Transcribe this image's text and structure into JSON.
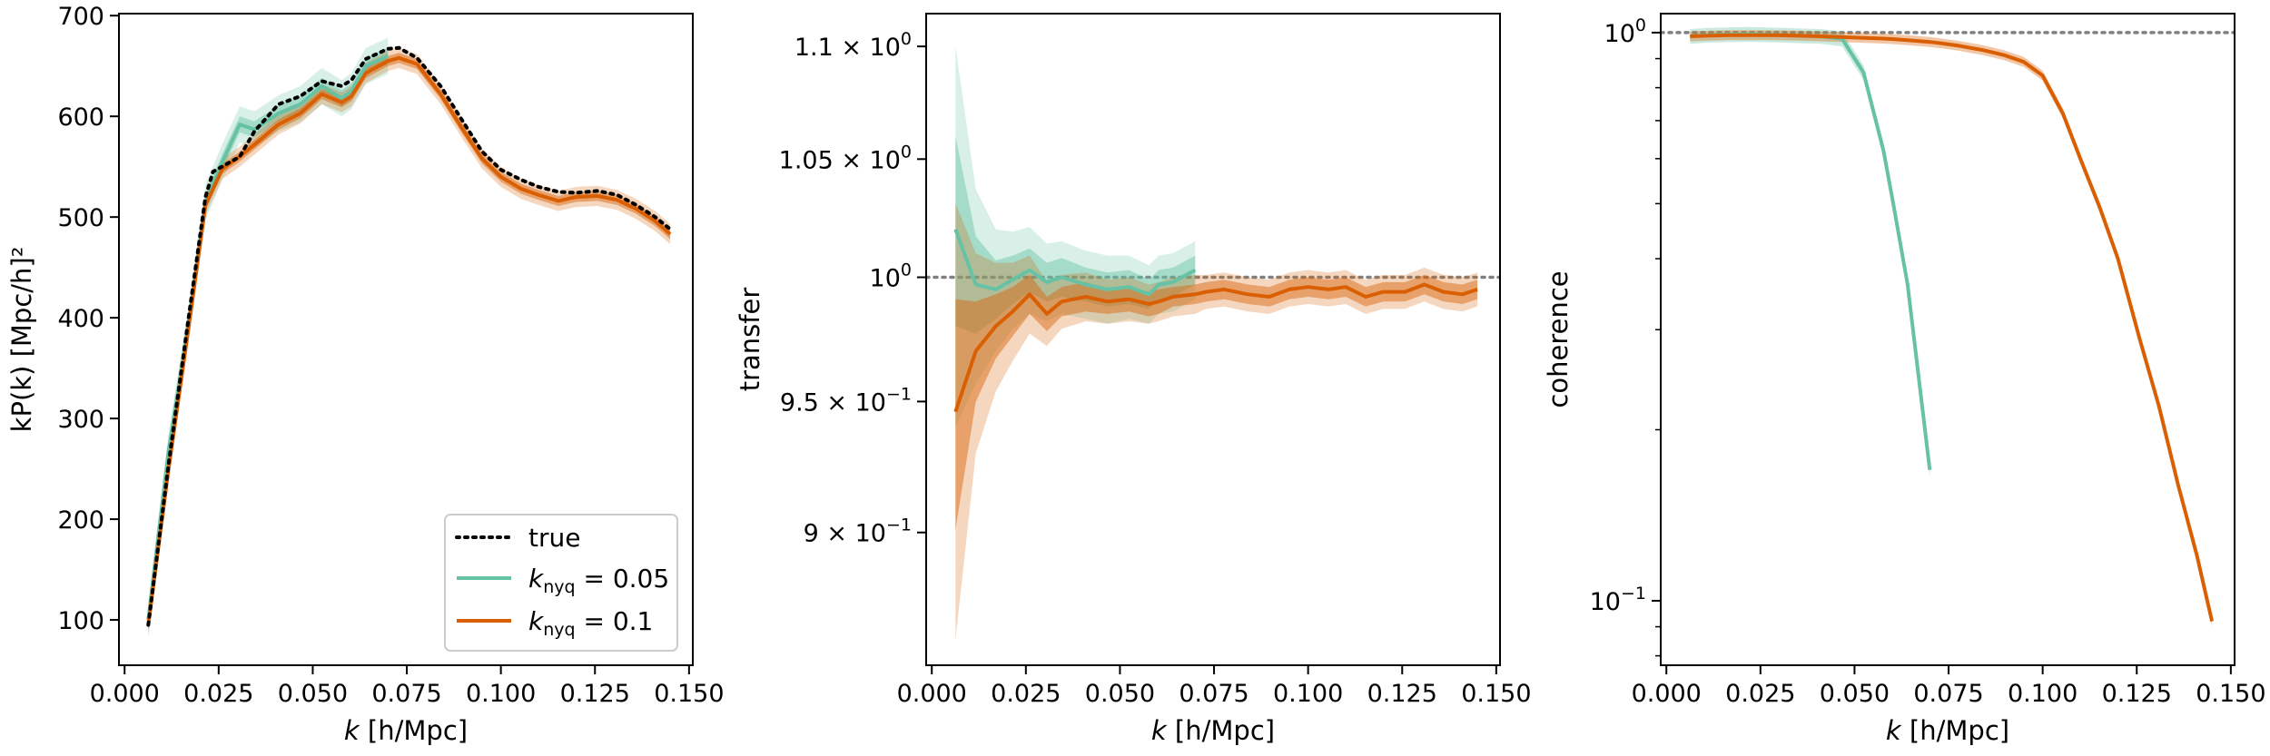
{
  "colors": {
    "true": "#000000",
    "k005": "#66c2a5",
    "k01": "#d95f02",
    "reference": "#808080"
  },
  "legend": {
    "true_label": "true",
    "k005_label": "k",
    "k005_sub": "nyq",
    "k005_value": " = 0.05",
    "k01_label": "k",
    "k01_sub": "nyq",
    "k01_value": " = 0.1"
  },
  "chart_data": [
    {
      "type": "line",
      "xlabel_k": "k",
      "xlabel_rest": " [h/Mpc]",
      "ylabel": "kP(k) [Mpc/h]²",
      "xlim": [
        -0.0015,
        0.151
      ],
      "ylim": [
        55,
        702
      ],
      "xticks": [
        "0.000",
        "0.025",
        "0.050",
        "0.075",
        "0.100",
        "0.125",
        "0.150"
      ],
      "yticks": [
        "100",
        "200",
        "300",
        "400",
        "500",
        "600",
        "700"
      ],
      "legend_position": "lower right",
      "series": [
        {
          "name": "true",
          "style": "dotted",
          "x": [
            0.0063,
            0.0117,
            0.017,
            0.0215,
            0.0235,
            0.0306,
            0.0345,
            0.0409,
            0.0467,
            0.0524,
            0.0577,
            0.0603,
            0.0641,
            0.07,
            0.0729,
            0.0777,
            0.084,
            0.0897,
            0.095,
            0.1,
            0.1054,
            0.11,
            0.1153,
            0.12,
            0.1257,
            0.1309,
            0.136,
            0.141,
            0.145
          ],
          "y": [
            95,
            255,
            400,
            520,
            545,
            560,
            585,
            612,
            620,
            635,
            630,
            636,
            657,
            667,
            668,
            658,
            630,
            596,
            565,
            547,
            537,
            530,
            525,
            524,
            526,
            522,
            512,
            500,
            488
          ]
        },
        {
          "name": "k_nyq = 0.05",
          "x": [
            0.0063,
            0.0117,
            0.017,
            0.0215,
            0.026,
            0.0306,
            0.0345,
            0.0409,
            0.0467,
            0.0524,
            0.0577,
            0.0603,
            0.0641,
            0.07
          ],
          "y": [
            100,
            268,
            395,
            515,
            555,
            592,
            587,
            603,
            612,
            630,
            618,
            625,
            650,
            660
          ],
          "band_inner": 8,
          "band_outer": 18
        },
        {
          "name": "k_nyq = 0.1",
          "x": [
            0.0063,
            0.0117,
            0.017,
            0.0215,
            0.026,
            0.0306,
            0.0345,
            0.0409,
            0.0467,
            0.0524,
            0.0577,
            0.0603,
            0.0641,
            0.07,
            0.0729,
            0.0777,
            0.084,
            0.0897,
            0.095,
            0.1,
            0.1054,
            0.11,
            0.1153,
            0.12,
            0.1257,
            0.1309,
            0.136,
            0.141,
            0.145
          ],
          "y": [
            95,
            250,
            390,
            512,
            548,
            560,
            572,
            592,
            603,
            622,
            614,
            620,
            643,
            655,
            658,
            652,
            622,
            588,
            558,
            540,
            528,
            522,
            516,
            520,
            521,
            517,
            508,
            496,
            483
          ],
          "band_inner": 5,
          "band_outer": 10
        }
      ]
    },
    {
      "type": "line",
      "xlabel_k": "k",
      "xlabel_rest": " [h/Mpc]",
      "ylabel": "transfer",
      "yscale": "log",
      "xlim": [
        -0.0015,
        0.151
      ],
      "ylim": [
        0.852,
        1.115
      ],
      "xticks": [
        "0.000",
        "0.025",
        "0.050",
        "0.075",
        "0.100",
        "0.125",
        "0.150"
      ],
      "yticks": [
        {
          "mantissa": "1.1 × 10",
          "exp": "0",
          "value": 1.1
        },
        {
          "mantissa": "1.05 × 10",
          "exp": "0",
          "value": 1.05
        },
        {
          "mantissa": "10",
          "exp": "0",
          "value": 1.0
        },
        {
          "mantissa": "9.5 × 10",
          "exp": "−1",
          "value": 0.95
        },
        {
          "mantissa": "9 × 10",
          "exp": "−1",
          "value": 0.9
        }
      ],
      "reference_y": 1.0,
      "series": [
        {
          "name": "k_nyq = 0.05",
          "x": [
            0.0063,
            0.0117,
            0.017,
            0.0215,
            0.026,
            0.0306,
            0.0345,
            0.0409,
            0.0467,
            0.0524,
            0.0577,
            0.0603,
            0.0641,
            0.07
          ],
          "y": [
            1.02,
            0.997,
            0.995,
            0.999,
            1.003,
            0.998,
            1.0,
            0.997,
            0.995,
            0.996,
            0.993,
            0.997,
            0.998,
            1.003
          ],
          "band_inner": [
            0.04,
            0.02,
            0.012,
            0.01,
            0.009,
            0.008,
            0.008,
            0.007,
            0.007,
            0.007,
            0.006,
            0.006,
            0.006,
            0.006
          ],
          "band_outer": [
            0.08,
            0.04,
            0.025,
            0.02,
            0.018,
            0.016,
            0.015,
            0.014,
            0.014,
            0.013,
            0.012,
            0.012,
            0.012,
            0.012
          ]
        },
        {
          "name": "k_nyq = 0.1",
          "x": [
            0.0063,
            0.0117,
            0.017,
            0.0215,
            0.026,
            0.0306,
            0.0345,
            0.0409,
            0.0467,
            0.0524,
            0.0577,
            0.0603,
            0.0641,
            0.07,
            0.0729,
            0.0777,
            0.084,
            0.0897,
            0.095,
            0.1,
            0.1054,
            0.11,
            0.1153,
            0.12,
            0.1257,
            0.1309,
            0.136,
            0.141,
            0.145
          ],
          "y": [
            0.946,
            0.97,
            0.98,
            0.986,
            0.993,
            0.985,
            0.99,
            0.992,
            0.99,
            0.991,
            0.989,
            0.99,
            0.992,
            0.993,
            0.994,
            0.995,
            0.993,
            0.992,
            0.995,
            0.996,
            0.995,
            0.996,
            0.992,
            0.994,
            0.994,
            0.997,
            0.994,
            0.993,
            0.995
          ],
          "band_inner": [
            0.045,
            0.02,
            0.013,
            0.01,
            0.008,
            0.007,
            0.006,
            0.006,
            0.005,
            0.005,
            0.005,
            0.005,
            0.004,
            0.004,
            0.004,
            0.004,
            0.004,
            0.004,
            0.004,
            0.004,
            0.004,
            0.004,
            0.004,
            0.004,
            0.004,
            0.004,
            0.004,
            0.004,
            0.004
          ],
          "band_outer": [
            0.085,
            0.04,
            0.026,
            0.02,
            0.016,
            0.013,
            0.011,
            0.01,
            0.009,
            0.009,
            0.008,
            0.008,
            0.008,
            0.008,
            0.007,
            0.007,
            0.007,
            0.007,
            0.007,
            0.007,
            0.007,
            0.007,
            0.007,
            0.007,
            0.007,
            0.007,
            0.007,
            0.007,
            0.007
          ]
        }
      ]
    },
    {
      "type": "line",
      "xlabel_k": "k",
      "xlabel_rest": " [h/Mpc]",
      "ylabel": "coherence",
      "yscale": "log",
      "xlim": [
        -0.0015,
        0.151
      ],
      "ylim": [
        0.077,
        1.08
      ],
      "xticks": [
        "0.000",
        "0.025",
        "0.050",
        "0.075",
        "0.100",
        "0.125",
        "0.150"
      ],
      "yticks": [
        {
          "mantissa": "10",
          "exp": "0",
          "value": 1.0
        },
        {
          "mantissa": "10",
          "exp": "−1",
          "value": 0.1
        }
      ],
      "reference_y": 1.0,
      "series": [
        {
          "name": "k_nyq = 0.05",
          "x": [
            0.0063,
            0.0117,
            0.017,
            0.0215,
            0.026,
            0.0306,
            0.0345,
            0.0409,
            0.0467,
            0.0524,
            0.0577,
            0.0603,
            0.0641,
            0.07
          ],
          "y": [
            0.985,
            0.99,
            0.992,
            0.993,
            0.992,
            0.99,
            0.988,
            0.985,
            0.975,
            0.85,
            0.62,
            0.5,
            0.36,
            0.17
          ],
          "band": 0.03
        },
        {
          "name": "k_nyq = 0.1",
          "x": [
            0.0063,
            0.0117,
            0.017,
            0.0215,
            0.026,
            0.0306,
            0.0345,
            0.0409,
            0.0467,
            0.0524,
            0.0577,
            0.0603,
            0.0641,
            0.07,
            0.0729,
            0.0777,
            0.084,
            0.0897,
            0.095,
            0.1,
            0.1054,
            0.11,
            0.1153,
            0.12,
            0.1257,
            0.1309,
            0.136,
            0.141,
            0.145
          ],
          "y": [
            0.985,
            0.988,
            0.99,
            0.99,
            0.99,
            0.989,
            0.988,
            0.985,
            0.982,
            0.979,
            0.976,
            0.974,
            0.97,
            0.963,
            0.958,
            0.948,
            0.932,
            0.913,
            0.888,
            0.84,
            0.72,
            0.6,
            0.49,
            0.4,
            0.29,
            0.22,
            0.16,
            0.12,
            0.092
          ],
          "band": 0.02
        }
      ]
    }
  ]
}
